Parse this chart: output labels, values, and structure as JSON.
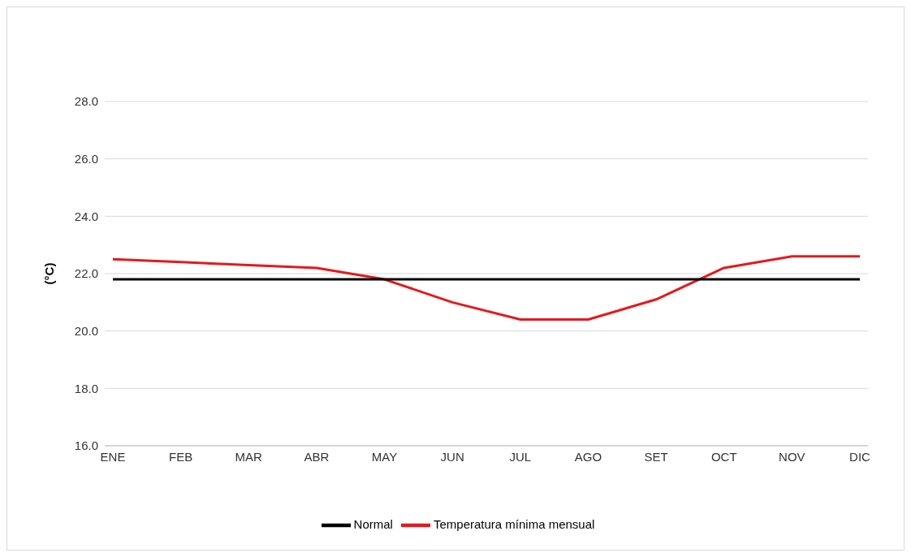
{
  "chart_data": {
    "type": "line",
    "ylabel": "(°C)",
    "categories": [
      "ENE",
      "FEB",
      "MAR",
      "ABR",
      "MAY",
      "JUN",
      "JUL",
      "AGO",
      "SET",
      "OCT",
      "NOV",
      "DIC"
    ],
    "series": [
      {
        "name": "Temperatura mínima mensual",
        "color": "#e31a1c",
        "values": [
          22.5,
          22.4,
          22.3,
          22.2,
          21.8,
          21.0,
          20.4,
          20.4,
          21.1,
          22.2,
          22.6,
          22.6
        ]
      },
      {
        "name": "Normal",
        "color": "#000000",
        "values": [
          21.8,
          21.8,
          21.8,
          21.8,
          21.8,
          21.8,
          21.8,
          21.8,
          21.8,
          21.8,
          21.8,
          21.8
        ]
      }
    ],
    "ylim": [
      16,
      28
    ],
    "yticks": [
      {
        "value": 16,
        "label": "16.0"
      },
      {
        "value": 18,
        "label": "18.0"
      },
      {
        "value": 20,
        "label": "20.0"
      },
      {
        "value": 22,
        "label": "22.0"
      },
      {
        "value": 24,
        "label": "24.0"
      },
      {
        "value": 26,
        "label": "26.0"
      },
      {
        "value": 28,
        "label": "28.0"
      }
    ],
    "grid": "y",
    "legend": "bottom",
    "marker": "none",
    "line_style": "solid"
  }
}
